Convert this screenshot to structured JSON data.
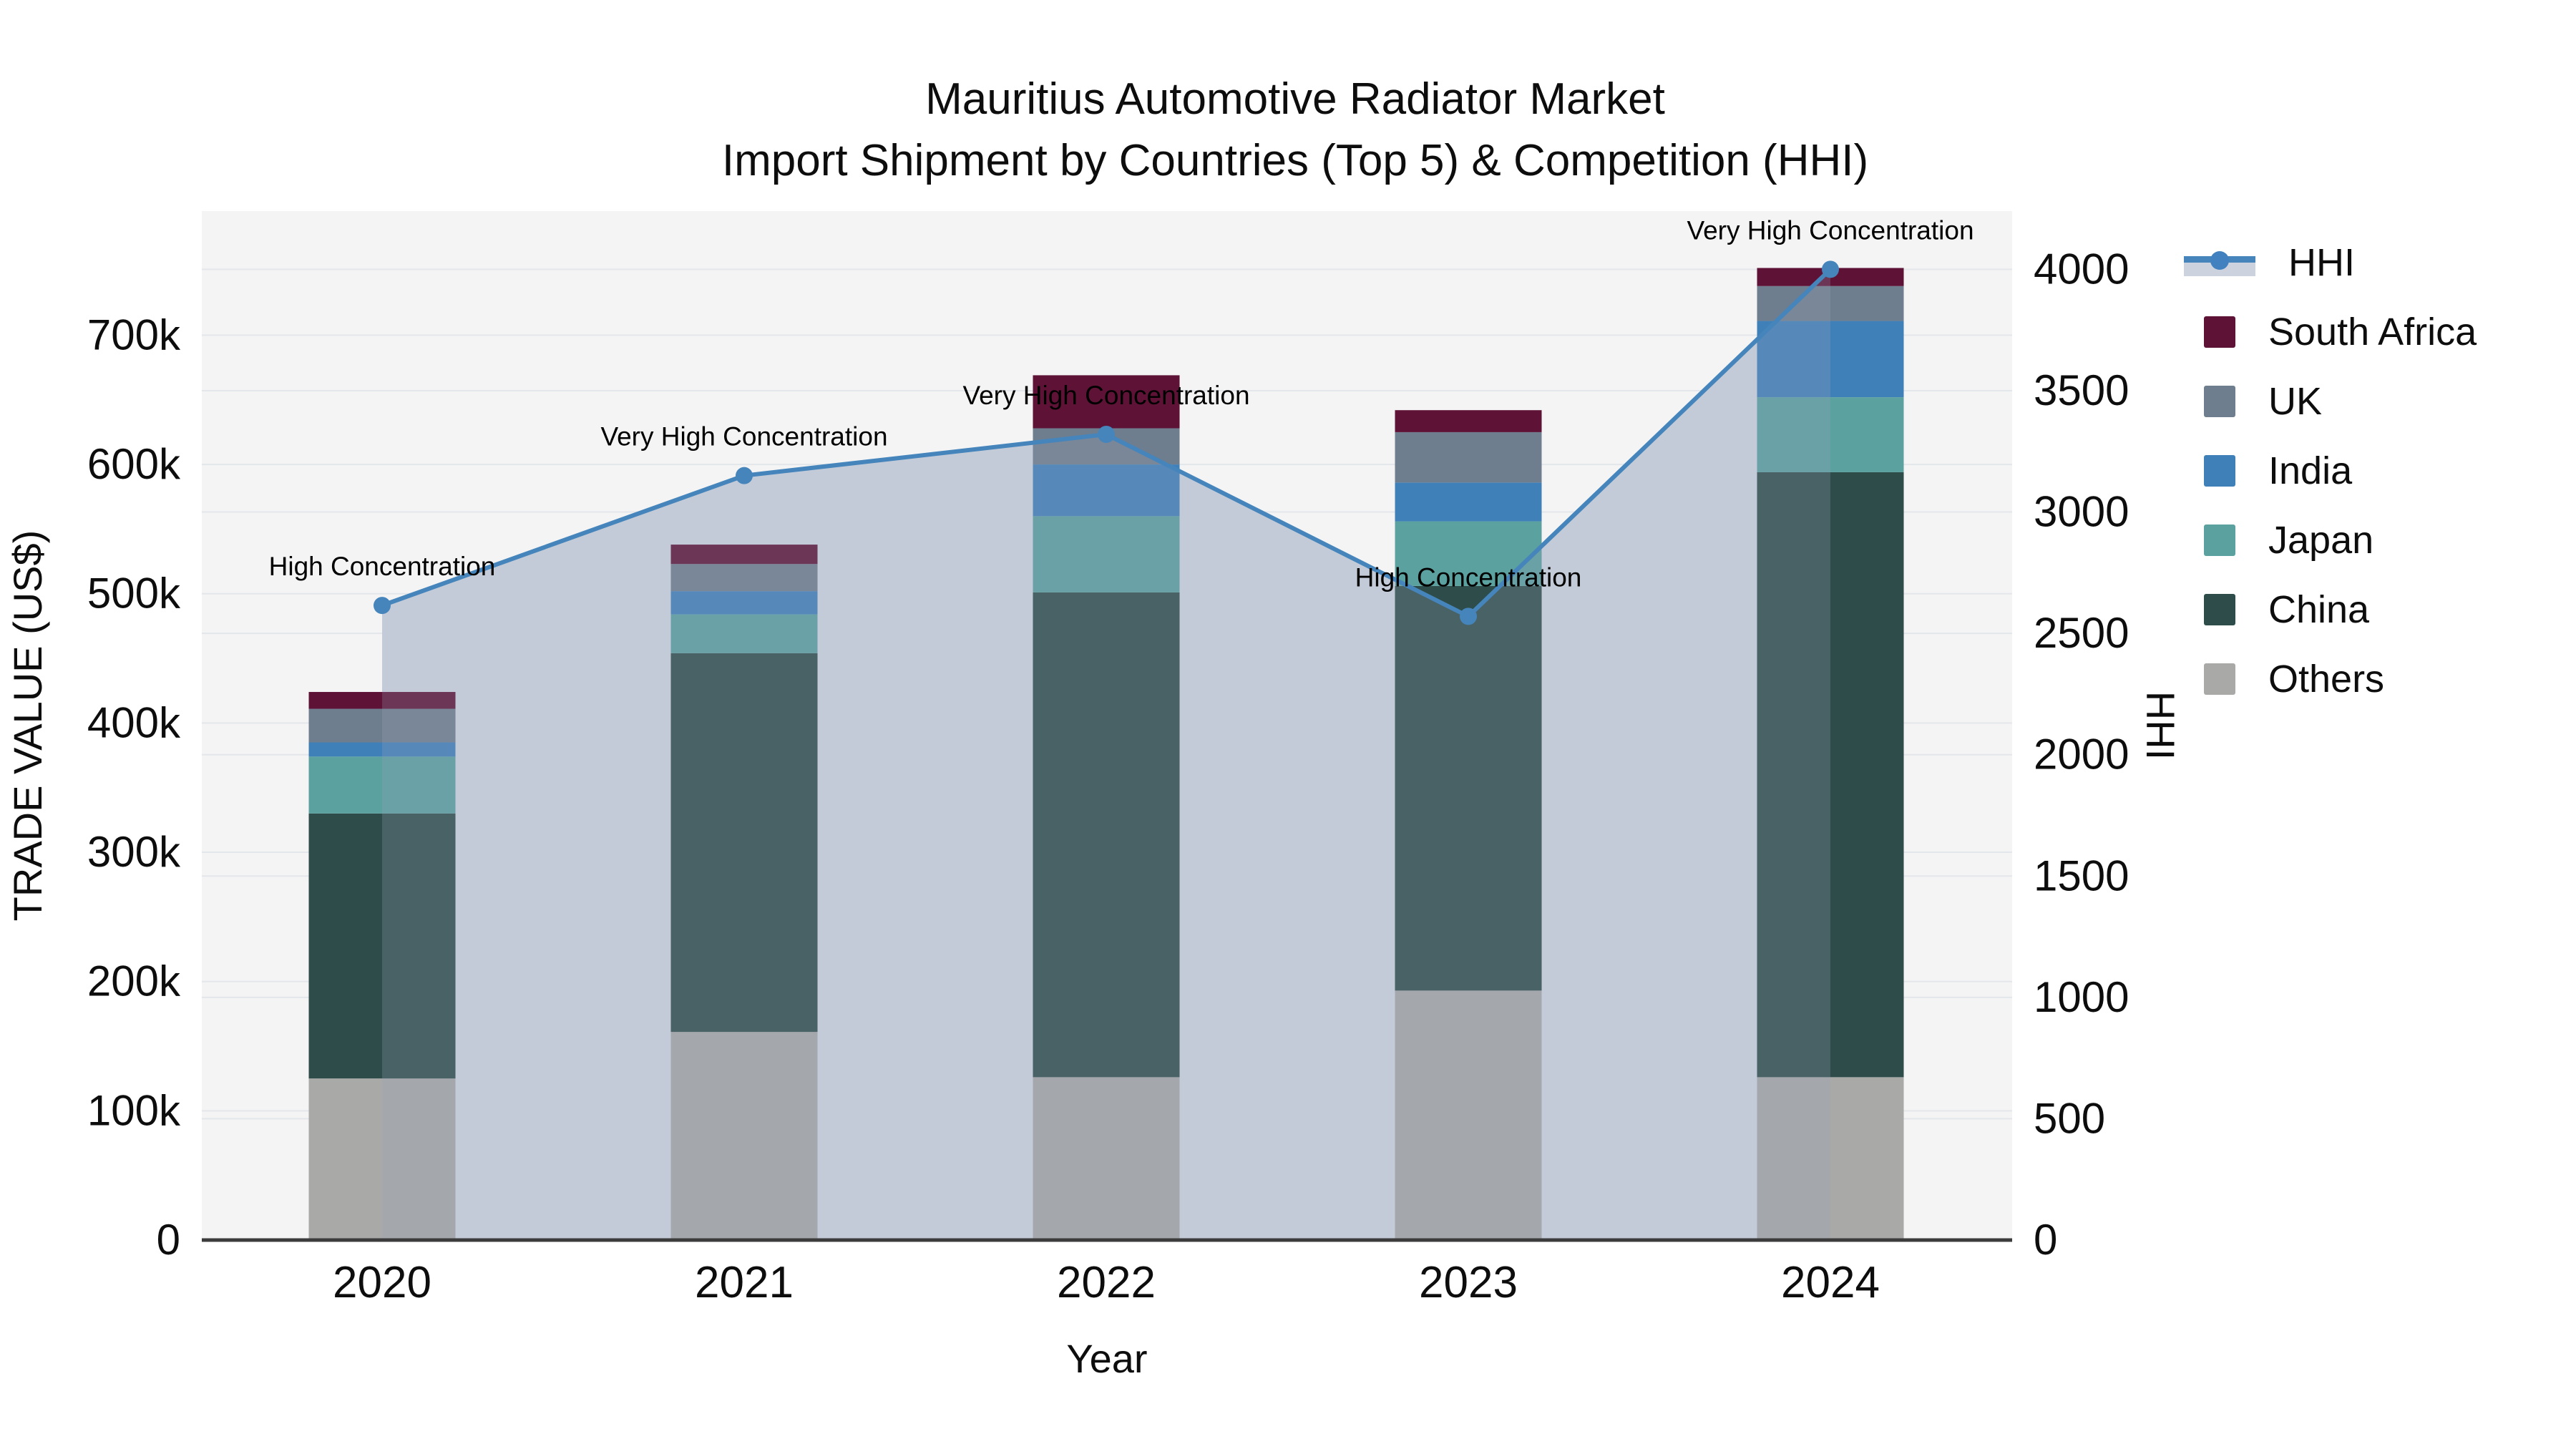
{
  "title": {
    "line1": "Mauritius Automotive Radiator Market",
    "line2": "Import Shipment by Countries (Top 5) & Competition (HHI)"
  },
  "chart_data": {
    "type": "bar+line",
    "title": "Mauritius Automotive Radiator Market Import Shipment by Countries (Top 5) & Competition (HHI)",
    "categories": [
      "2020",
      "2021",
      "2022",
      "2023",
      "2024"
    ],
    "stack_order_bottom_to_top": [
      "Others",
      "China",
      "Japan",
      "India",
      "UK",
      "South Africa"
    ],
    "series": [
      {
        "name": "Others",
        "color": "#a9a9a7",
        "values": [
          125000,
          161000,
          126000,
          193000,
          126000
        ]
      },
      {
        "name": "China",
        "color": "#2e4d4a",
        "values": [
          205000,
          293000,
          375000,
          313000,
          468000
        ]
      },
      {
        "name": "Japan",
        "color": "#5ba19f",
        "values": [
          44000,
          30000,
          59000,
          50000,
          58000
        ]
      },
      {
        "name": "India",
        "color": "#4080b8",
        "values": [
          11000,
          18000,
          40000,
          30000,
          59000
        ]
      },
      {
        "name": "UK",
        "color": "#6f7e8e",
        "values": [
          26000,
          21000,
          28000,
          39000,
          27000
        ]
      },
      {
        "name": "South Africa",
        "color": "#5e1236",
        "values": [
          13000,
          15000,
          41000,
          17000,
          14000
        ]
      }
    ],
    "line_series": {
      "name": "HHI",
      "color": "#4585bb",
      "fill_color": "#d3d8e2",
      "values": [
        2615,
        3150,
        3320,
        2570,
        4000
      ]
    },
    "annotations": [
      "High Concentration",
      "Very High Concentration",
      "Very High Concentration",
      "High Concentration",
      "Very High Concentration"
    ],
    "xlabel": "Year",
    "ylabel_left": "TRADE VALUE (US$)",
    "ylabel_right": "HHI",
    "yticks_left": [
      {
        "v": 0,
        "label": "0"
      },
      {
        "v": 100000,
        "label": "100k"
      },
      {
        "v": 200000,
        "label": "200k"
      },
      {
        "v": 300000,
        "label": "300k"
      },
      {
        "v": 400000,
        "label": "400k"
      },
      {
        "v": 500000,
        "label": "500k"
      },
      {
        "v": 600000,
        "label": "600k"
      },
      {
        "v": 700000,
        "label": "700k"
      }
    ],
    "yticks_right": [
      {
        "v": 0,
        "label": "0"
      },
      {
        "v": 500,
        "label": "500"
      },
      {
        "v": 1000,
        "label": "1000"
      },
      {
        "v": 1500,
        "label": "1500"
      },
      {
        "v": 2000,
        "label": "2000"
      },
      {
        "v": 2500,
        "label": "2500"
      },
      {
        "v": 3000,
        "label": "3000"
      },
      {
        "v": 3500,
        "label": "3500"
      },
      {
        "v": 4000,
        "label": "4000"
      }
    ],
    "ylim_left": [
      0,
      796000
    ],
    "ylim_right": [
      0,
      4240
    ],
    "grid": true,
    "legend_position": "right",
    "plot_bg": "#f4f4f4",
    "grid_color": "#e3e6ea",
    "axis_line_color": "#3c3c3c",
    "tint_color": "rgba(150,162,188,0.25)"
  },
  "legend": {
    "items": [
      {
        "label": "HHI",
        "type": "line",
        "color": "#4585bb"
      },
      {
        "label": "South Africa",
        "type": "swatch",
        "color": "#5e1236"
      },
      {
        "label": "UK",
        "type": "swatch",
        "color": "#6f7e8e"
      },
      {
        "label": "India",
        "type": "swatch",
        "color": "#4080b8"
      },
      {
        "label": "Japan",
        "type": "swatch",
        "color": "#5ba19f"
      },
      {
        "label": "China",
        "type": "swatch",
        "color": "#2e4d4a"
      },
      {
        "label": "Others",
        "type": "swatch",
        "color": "#a9a9a7"
      }
    ]
  }
}
